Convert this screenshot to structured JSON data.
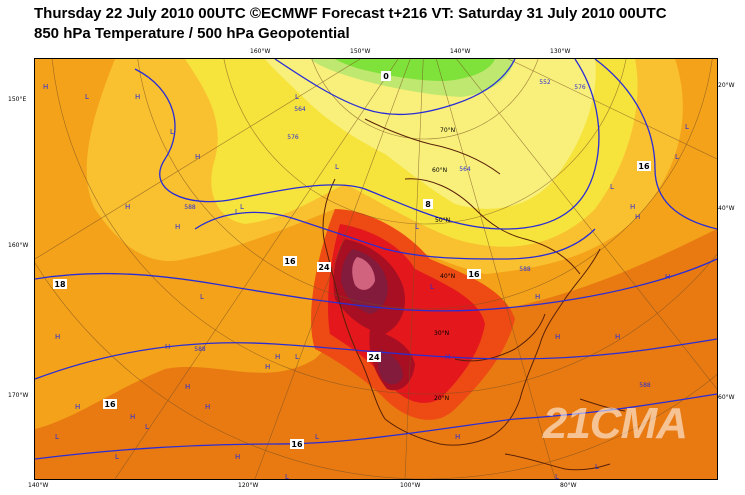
{
  "title_line1": "Thursday 22 July 2010 00UTC ©ECMWF Forecast t+216 VT: Saturday 31 July 2010 00UTC",
  "title_line2": "850 hPa Temperature / 500 hPa Geopotential",
  "watermark": "21CMA",
  "colors": {
    "deep_orange": "#e97a12",
    "orange": "#f4a21a",
    "light_orange": "#f9c030",
    "yellow": "#f6e33c",
    "pale_yellow": "#f8f07a",
    "green": "#bfe870",
    "bright_green": "#7ee23a",
    "red_orange": "#ee4a14",
    "red": "#e3171c",
    "dark_red": "#a80f22",
    "maroon": "#821b3c",
    "pink": "#d2637e",
    "contour": "#2a2dd6",
    "coast": "#5a2008"
  },
  "top_ticks": [
    "160°W",
    "150°W",
    "140°W",
    "130°W"
  ],
  "bottom_ticks": [
    "140°W",
    "120°W",
    "100°W",
    "80°W"
  ],
  "left_ticks": [
    "150°E",
    "160°W",
    "170°W"
  ],
  "right_ticks": [
    "20°W",
    "40°W",
    "60°W"
  ],
  "lat_labels": [
    "70°N",
    "60°N",
    "50°N",
    "40°N",
    "30°N",
    "20°N"
  ],
  "contour_labels": [
    "16",
    "16",
    "24",
    "16",
    "16",
    "24",
    "16",
    "8",
    "0",
    "18"
  ],
  "height_labels": [
    "564",
    "576",
    "588",
    "552",
    "588",
    "564",
    "576",
    "588",
    "588"
  ],
  "pressure_markers": [
    "H",
    "L",
    "H",
    "L",
    "H",
    "L",
    "H",
    "L",
    "L",
    "L",
    "H",
    "H",
    "H",
    "H",
    "L",
    "H",
    "H",
    "L",
    "H",
    "L",
    "H",
    "L",
    "H",
    "H",
    "H",
    "H",
    "L",
    "H",
    "L",
    "H",
    "H",
    "L",
    "L",
    "H",
    "L",
    "L",
    "H",
    "L",
    "L",
    "L",
    "H",
    "L",
    "L"
  ]
}
